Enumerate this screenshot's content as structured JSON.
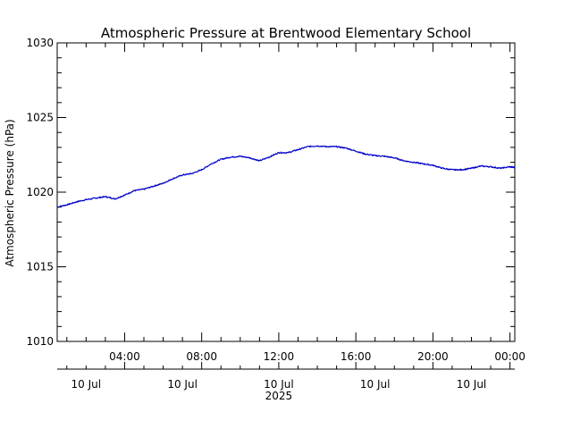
{
  "chart_data": {
    "type": "line",
    "title": "Atmospheric Pressure at Brentwood Elementary School",
    "ylabel": "Atmospheric Pressure (hPa)",
    "xlabel": "",
    "ylim": [
      1010,
      1030
    ],
    "xlim_hours": [
      0.5,
      24.25
    ],
    "y_major_ticks": [
      1010,
      1015,
      1020,
      1025,
      1030
    ],
    "x_major_ticks": [
      {
        "hour": 4,
        "label": "04:00"
      },
      {
        "hour": 8,
        "label": "08:00"
      },
      {
        "hour": 12,
        "label": "12:00"
      },
      {
        "hour": 16,
        "label": "16:00"
      },
      {
        "hour": 20,
        "label": "20:00"
      },
      {
        "hour": 24,
        "label": "00:00"
      }
    ],
    "date_labels": [
      {
        "hour": 2,
        "label": "10 Jul"
      },
      {
        "hour": 7,
        "label": "10 Jul"
      },
      {
        "hour": 12,
        "label": "10 Jul"
      },
      {
        "hour": 17,
        "label": "10 Jul"
      },
      {
        "hour": 22,
        "label": "10 Jul"
      }
    ],
    "year_label": {
      "hour": 12,
      "label": "2025"
    },
    "grid": false,
    "series": [
      {
        "color": "#0000c8",
        "x_hours": [
          0.5,
          1.0,
          1.5,
          2.0,
          2.5,
          3.0,
          3.5,
          4.0,
          4.5,
          5.0,
          5.5,
          6.0,
          6.5,
          7.0,
          7.5,
          8.0,
          8.5,
          9.0,
          9.5,
          10.0,
          10.5,
          11.0,
          11.5,
          12.0,
          12.5,
          13.0,
          13.5,
          14.0,
          14.5,
          15.0,
          15.5,
          16.0,
          16.5,
          17.0,
          17.5,
          18.0,
          18.5,
          19.0,
          19.5,
          20.0,
          20.5,
          21.0,
          21.5,
          22.0,
          22.5,
          23.0,
          23.5,
          24.0,
          24.25
        ],
        "values": [
          1019.0,
          1019.15,
          1019.35,
          1019.5,
          1019.6,
          1019.7,
          1019.55,
          1019.8,
          1020.1,
          1020.2,
          1020.4,
          1020.6,
          1020.9,
          1021.15,
          1021.25,
          1021.5,
          1021.9,
          1022.2,
          1022.35,
          1022.4,
          1022.3,
          1022.1,
          1022.35,
          1022.65,
          1022.65,
          1022.85,
          1023.05,
          1023.1,
          1023.05,
          1023.05,
          1022.95,
          1022.75,
          1022.55,
          1022.45,
          1022.4,
          1022.3,
          1022.1,
          1022.0,
          1021.9,
          1021.8,
          1021.6,
          1021.5,
          1021.5,
          1021.6,
          1021.75,
          1021.7,
          1021.6,
          1021.7,
          1021.65
        ]
      }
    ]
  }
}
